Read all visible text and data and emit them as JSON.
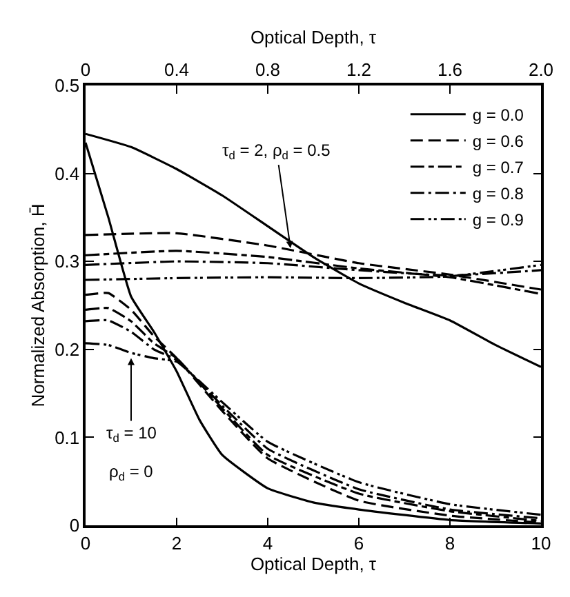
{
  "chart_data": {
    "type": "line",
    "xlabel": "Optical Depth, τ",
    "x2label": "Optical Depth, τ",
    "ylabel": "Normalized Absorption, H̄",
    "xlim": [
      0,
      10
    ],
    "xticks": [
      0,
      2,
      4,
      6,
      8,
      10
    ],
    "x2lim": [
      0,
      2.0
    ],
    "x2ticks": [
      0,
      0.4,
      0.8,
      1.2,
      1.6,
      {
        "value": 2.0,
        "label": "2.0"
      }
    ],
    "ylim": [
      0,
      0.5
    ],
    "yticks": [
      0,
      0.1,
      0.2,
      0.3,
      0.4,
      0.5
    ],
    "grid": false,
    "legend": "top right",
    "marker": "none",
    "series": [
      {
        "name": "g = 0.0",
        "color": "#000000",
        "line_style": "solid",
        "x": [
          0,
          0.5,
          1,
          1.5,
          2,
          2.5,
          3,
          4,
          5,
          6,
          8,
          10
        ],
        "values": [
          0.435,
          0.35,
          0.26,
          0.22,
          0.175,
          0.12,
          0.08,
          0.042,
          0.026,
          0.018,
          0.006,
          0.002
        ]
      },
      {
        "name": "g = 0.6",
        "color": "#000000",
        "line_style": "dashed",
        "x": [
          0,
          0.5,
          1,
          1.5,
          2,
          3,
          4,
          6,
          8,
          10
        ],
        "values": [
          0.262,
          0.264,
          0.245,
          0.215,
          0.19,
          0.13,
          0.076,
          0.028,
          0.011,
          0.003
        ]
      },
      {
        "name": "g = 0.7",
        "color": "#000000",
        "line_style": "longdashdash",
        "x": [
          0,
          0.5,
          1,
          1.5,
          2,
          3,
          4,
          6,
          8,
          10
        ],
        "values": [
          0.245,
          0.247,
          0.232,
          0.207,
          0.19,
          0.133,
          0.08,
          0.036,
          0.016,
          0.005
        ]
      },
      {
        "name": "g = 0.8",
        "color": "#000000",
        "line_style": "dashdot",
        "x": [
          0,
          0.5,
          1,
          1.5,
          2,
          3,
          4,
          6,
          8,
          10
        ],
        "values": [
          0.232,
          0.233,
          0.22,
          0.2,
          0.188,
          0.136,
          0.087,
          0.041,
          0.018,
          0.008
        ]
      },
      {
        "name": "g = 0.9",
        "color": "#000000",
        "line_style": "dashdotdot",
        "x": [
          0,
          0.5,
          1,
          1.5,
          2,
          3,
          4,
          6,
          8,
          10
        ],
        "values": [
          0.207,
          0.205,
          0.196,
          0.19,
          0.186,
          0.14,
          0.095,
          0.049,
          0.024,
          0.012
        ]
      },
      {
        "color": "#000000",
        "line_style": "solid",
        "axis": "x2",
        "x": [
          0,
          0.2,
          0.4,
          0.6,
          0.8,
          1.0,
          1.2,
          1.4,
          1.6,
          1.8,
          2.0
        ],
        "values": [
          0.445,
          0.43,
          0.405,
          0.375,
          0.34,
          0.305,
          0.275,
          0.253,
          0.233,
          0.205,
          0.18
        ]
      },
      {
        "color": "#000000",
        "line_style": "dashed",
        "axis": "x2",
        "x": [
          0,
          0.4,
          0.8,
          1.2,
          1.6,
          2.0
        ],
        "values": [
          0.33,
          0.332,
          0.318,
          0.298,
          0.285,
          0.268
        ]
      },
      {
        "color": "#000000",
        "line_style": "longdashdash",
        "axis": "x2",
        "x": [
          0,
          0.4,
          0.8,
          1.2,
          1.6,
          2.0
        ],
        "values": [
          0.307,
          0.312,
          0.305,
          0.292,
          0.282,
          0.263
        ]
      },
      {
        "color": "#000000",
        "line_style": "dashdot",
        "axis": "x2",
        "x": [
          0,
          0.4,
          0.8,
          1.2,
          1.6,
          2.0
        ],
        "values": [
          0.296,
          0.3,
          0.298,
          0.29,
          0.284,
          0.29
        ]
      },
      {
        "color": "#000000",
        "line_style": "dashdotdot",
        "axis": "x2",
        "x": [
          0,
          0.4,
          0.8,
          1.2,
          1.6,
          2.0
        ],
        "values": [
          0.279,
          0.281,
          0.282,
          0.281,
          0.283,
          0.296
        ]
      }
    ],
    "annotations": [
      {
        "text": "τ$_{d}$ = 2, ρ$_{d}$ = 0.5",
        "x": 4.5,
        "y": 0.315
      },
      {
        "text": "τ$_{d}$ = 10",
        "x": 1.0,
        "y": 0.19
      },
      "ρ$_{d}$ = 0"
    ]
  }
}
